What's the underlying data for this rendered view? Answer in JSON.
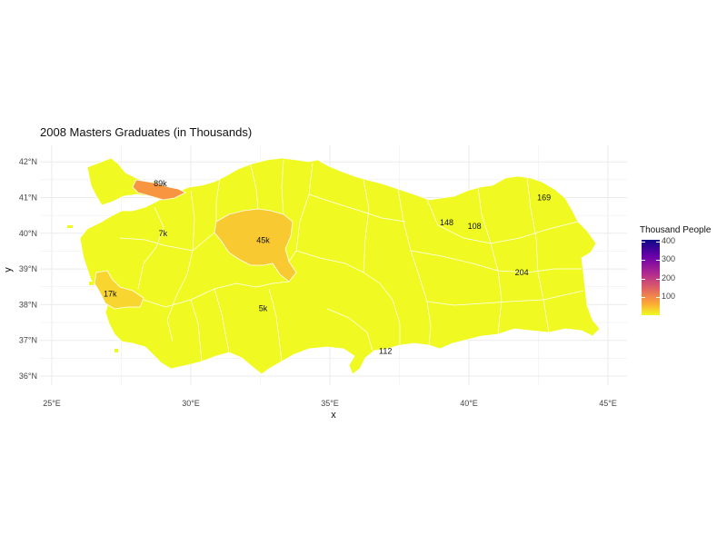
{
  "title": "2008 Masters Graduates (in Thousands)",
  "axes": {
    "x_title": "x",
    "y_title": "y",
    "x_ticks": [
      "25°E",
      "30°E",
      "35°E",
      "40°E",
      "45°E"
    ],
    "y_ticks": [
      "42°N",
      "41°N",
      "40°N",
      "39°N",
      "38°N",
      "37°N",
      "36°N"
    ]
  },
  "legend": {
    "title": "Thousand People",
    "ticks": [
      "400",
      "300",
      "200",
      "100"
    ],
    "palette": [
      "#0d0887",
      "#6a00a8",
      "#b12a90",
      "#e16462",
      "#fca636",
      "#f0f921"
    ]
  },
  "chart_data": {
    "type": "choropleth",
    "title": "2008 Masters Graduates (in Thousands)",
    "xlabel": "x",
    "ylabel": "y",
    "xlim": [
      25,
      45
    ],
    "ylim": [
      36,
      42
    ],
    "color_scale": {
      "name": "plasma (reversed)",
      "range": [
        0,
        400
      ],
      "legend_title": "Thousand People"
    },
    "default_fill": "#f0f921",
    "labels": [
      {
        "text": "89k",
        "lon": 28.9,
        "lat": 41.4,
        "fill": "#f79540"
      },
      {
        "text": "7k",
        "lon": 29.0,
        "lat": 40.0
      },
      {
        "text": "45k",
        "lon": 32.6,
        "lat": 39.8,
        "fill": "#f9c932"
      },
      {
        "text": "17k",
        "lon": 27.1,
        "lat": 38.3,
        "fill": "#f9d52f"
      },
      {
        "text": "5k",
        "lon": 32.6,
        "lat": 37.9
      },
      {
        "text": "148",
        "lon": 39.2,
        "lat": 40.3
      },
      {
        "text": "108",
        "lon": 40.2,
        "lat": 40.2
      },
      {
        "text": "169",
        "lon": 42.7,
        "lat": 41.0
      },
      {
        "text": "204",
        "lon": 41.9,
        "lat": 38.9
      },
      {
        "text": "112",
        "lon": 37.0,
        "lat": 36.7
      }
    ]
  }
}
